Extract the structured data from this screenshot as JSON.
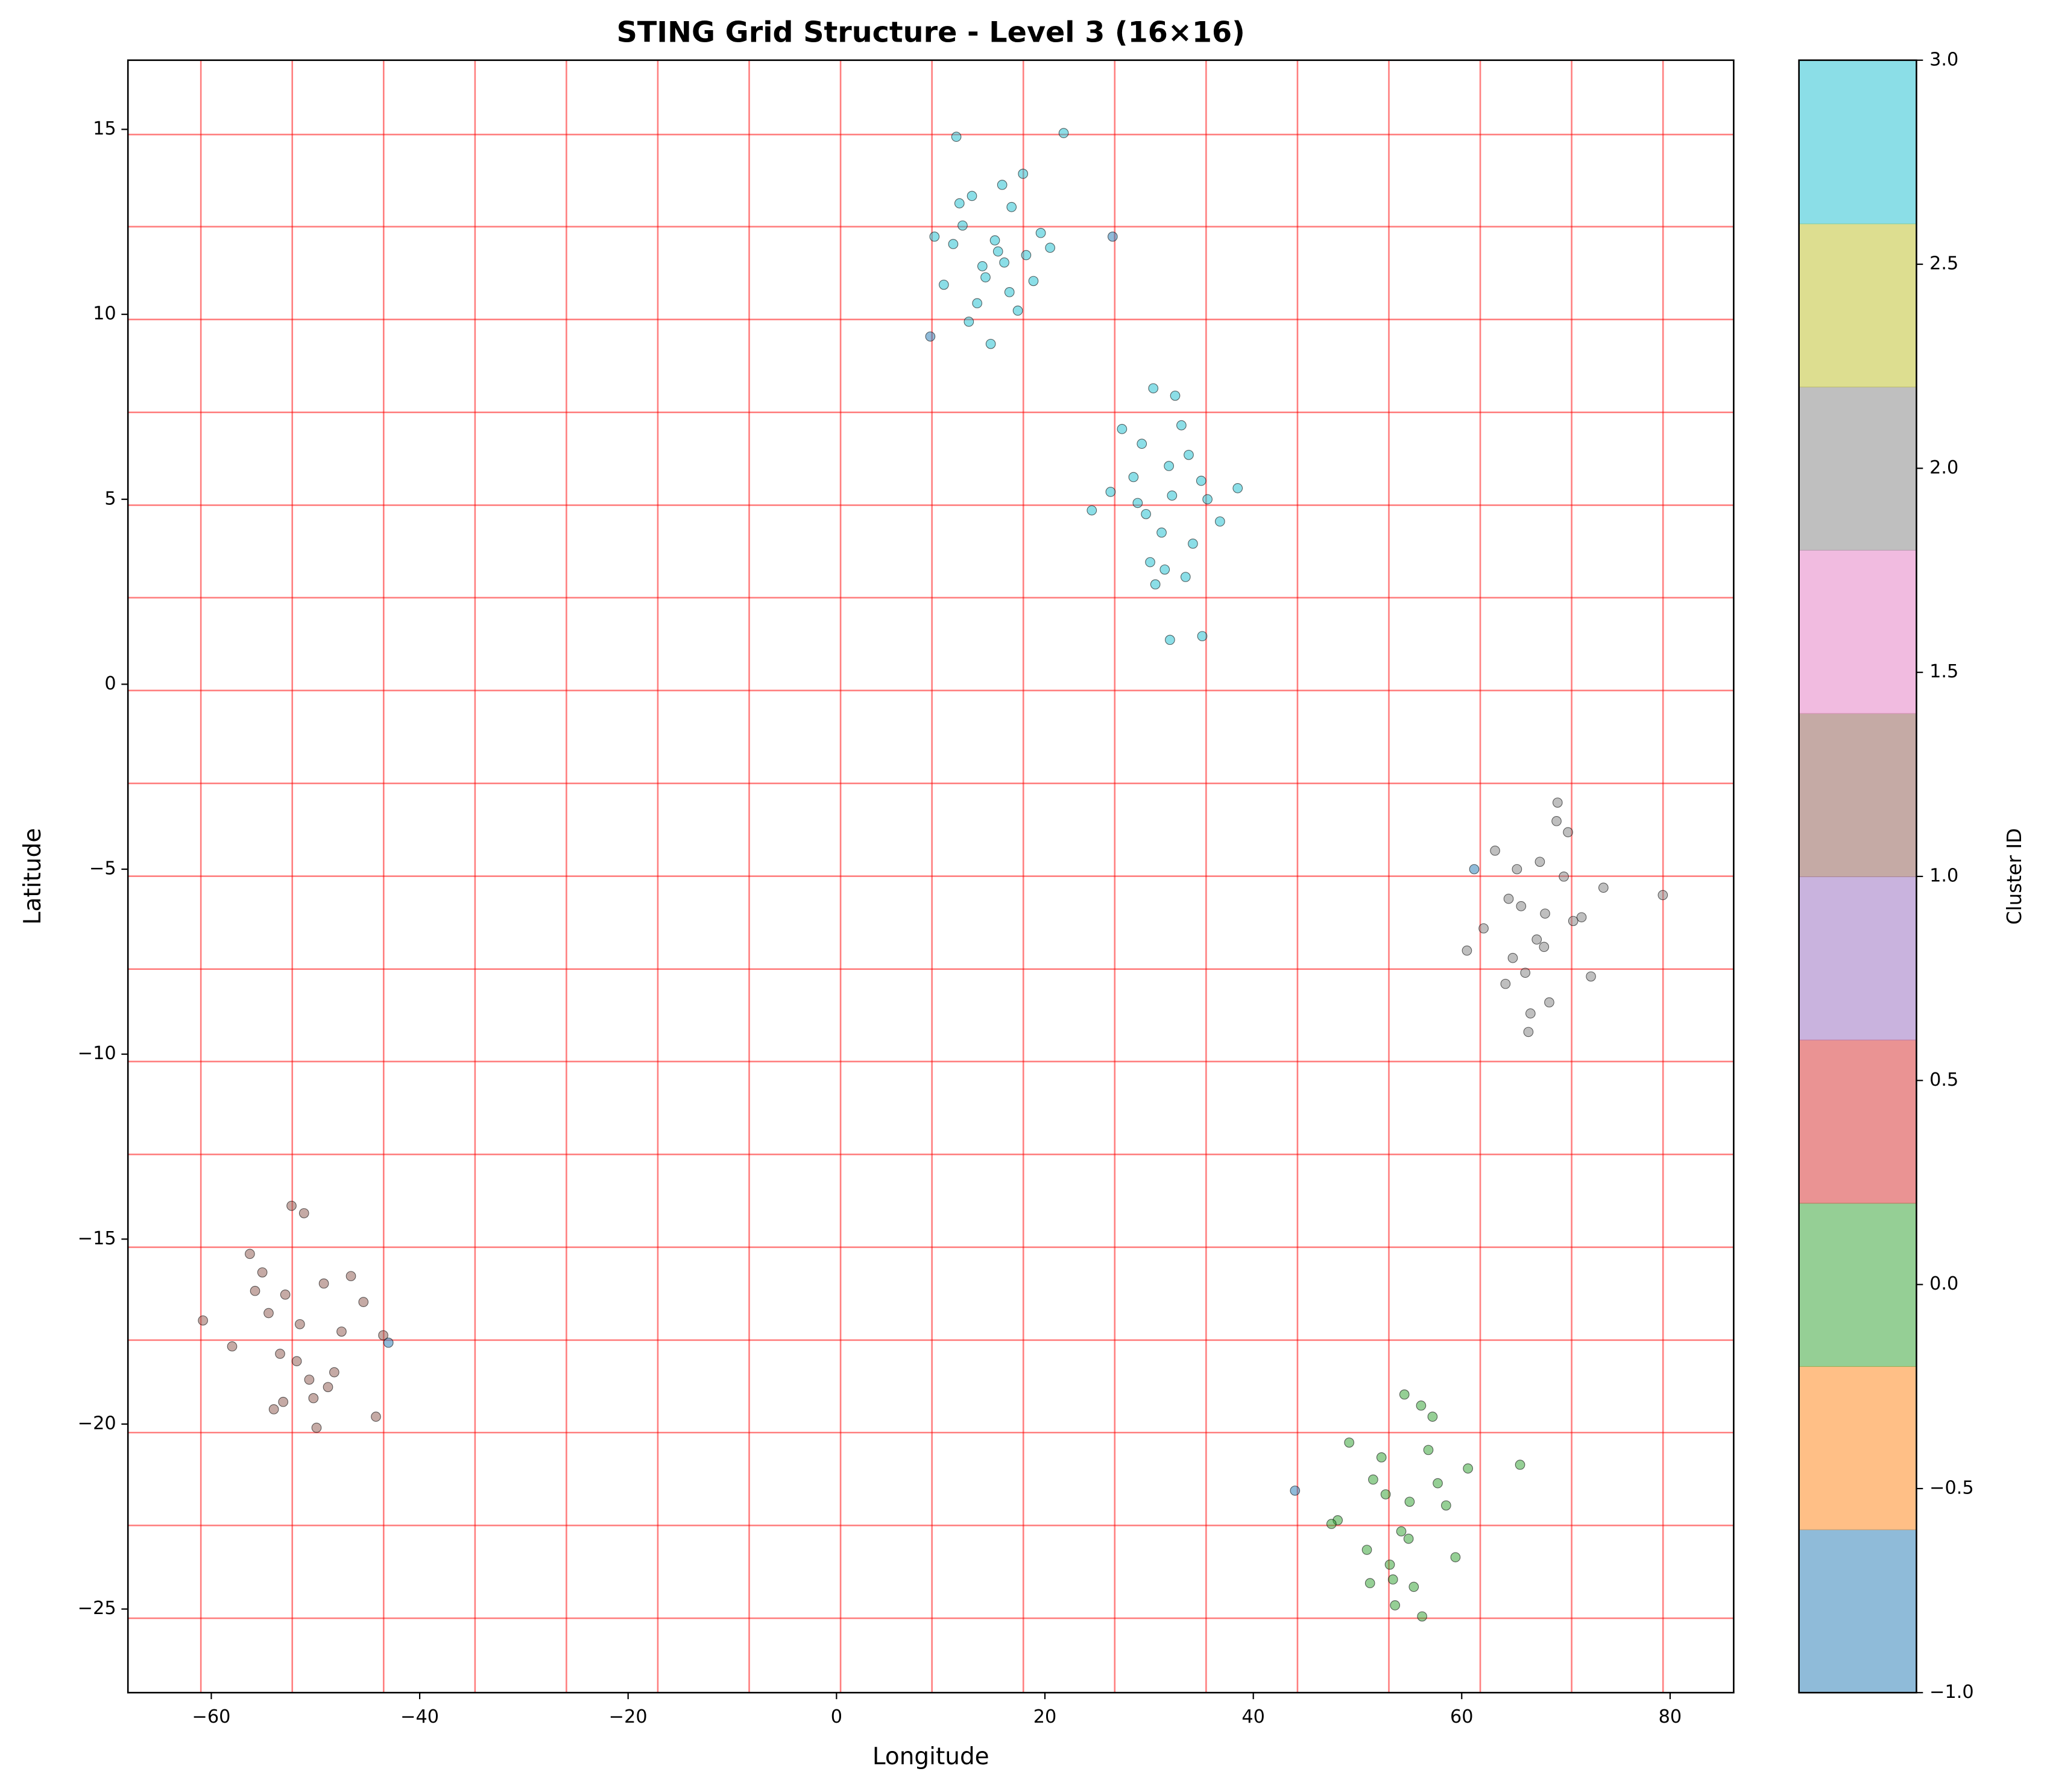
{
  "chart_data": {
    "type": "scatter",
    "title": "STING Grid Structure - Level 3 (16×16)",
    "x_label": "Longitude",
    "y_label": "Latitude",
    "colorbar_label": "Cluster ID",
    "colormap": [
      "#1f77b4",
      "#ff7f0e",
      "#2ca02c",
      "#d62728",
      "#9467bd",
      "#8c564b",
      "#e377c2",
      "#7f7f7f",
      "#bcbd22",
      "#17becf"
    ],
    "clim": [
      -1,
      3
    ],
    "cticks": [
      {
        "value": -1,
        "label": "−1.0"
      },
      {
        "value": -0.5,
        "label": "−0.5"
      },
      {
        "value": 0,
        "label": "0.0"
      },
      {
        "value": 0.5,
        "label": "0.5"
      },
      {
        "value": 1,
        "label": "1.0"
      },
      {
        "value": 1.5,
        "label": "1.5"
      },
      {
        "value": 2,
        "label": "2.0"
      },
      {
        "value": 2.5,
        "label": "2.5"
      },
      {
        "value": 3,
        "label": "3.0"
      }
    ],
    "xlim": [
      -68.0,
      86.1
    ],
    "ylim": [
      -27.26,
      16.87
    ],
    "xticks": [
      {
        "value": -60,
        "label": "−60"
      },
      {
        "value": -40,
        "label": "−40"
      },
      {
        "value": -20,
        "label": "−20"
      },
      0,
      20,
      40,
      60,
      80
    ],
    "yticks": [
      {
        "value": -25,
        "label": "−25"
      },
      {
        "value": -20,
        "label": "−20"
      },
      {
        "value": -15,
        "label": "−15"
      },
      {
        "value": -10,
        "label": "−10"
      },
      {
        "value": -5,
        "label": "−5"
      },
      0,
      5,
      10,
      15
    ],
    "grid_color": "#ff0000",
    "grid_x": [
      -61.0,
      -52.23,
      -43.46,
      -34.69,
      -25.92,
      -17.15,
      -8.38,
      0.39,
      9.16,
      17.93,
      26.7,
      35.47,
      44.24,
      53.01,
      61.78,
      70.55,
      79.32
    ],
    "grid_y": [
      -25.25,
      -22.74,
      -20.23,
      -17.73,
      -15.22,
      -12.71,
      -10.2,
      -7.7,
      -5.19,
      -2.68,
      -0.17,
      2.34,
      4.84,
      7.35,
      9.86,
      12.37,
      14.86
    ],
    "series": [
      {
        "cluster": 3,
        "x": [
          12.1,
          14.3,
          16.8,
          18.2,
          13.5,
          15.9,
          11.2,
          17.4,
          19.6,
          14.8,
          10.3,
          16.1,
          13.0,
          20.5,
          15.2,
          12.7,
          17.9,
          9.4,
          21.8,
          14.0,
          16.6,
          11.8,
          18.9,
          15.5,
          11.5
        ],
        "y": [
          12.4,
          11.0,
          12.9,
          11.6,
          10.3,
          13.5,
          11.9,
          10.1,
          12.2,
          9.2,
          10.8,
          11.4,
          13.2,
          11.8,
          12.0,
          9.8,
          13.8,
          12.1,
          14.9,
          11.3,
          10.6,
          13.0,
          10.9,
          11.7,
          14.8
        ]
      },
      {
        "cluster": 3,
        "x": [
          28.5,
          31.2,
          33.8,
          30.1,
          35.6,
          27.4,
          32.5,
          29.7,
          34.2,
          31.9,
          26.3,
          36.8,
          30.6,
          33.1,
          28.9,
          32.0,
          29.3,
          35.0,
          31.5,
          38.5,
          24.5,
          30.4,
          33.5,
          32.2,
          35.1
        ],
        "y": [
          5.6,
          4.1,
          6.2,
          3.3,
          5.0,
          6.9,
          7.8,
          4.6,
          3.8,
          5.9,
          5.2,
          4.4,
          2.7,
          7.0,
          4.9,
          1.2,
          6.5,
          5.5,
          3.1,
          5.3,
          4.7,
          8.0,
          2.9,
          5.1,
          1.3
        ]
      },
      {
        "cluster": 2,
        "x": [
          64.5,
          67.2,
          69.8,
          66.1,
          71.5,
          63.2,
          68.4,
          65.7,
          70.2,
          67.9,
          62.1,
          73.6,
          66.6,
          69.1,
          64.9,
          68.0,
          65.3,
          72.4,
          67.5,
          79.3,
          60.5,
          66.4,
          70.7,
          69.2,
          64.2
        ],
        "y": [
          -5.8,
          -6.9,
          -5.2,
          -7.8,
          -6.3,
          -4.5,
          -8.6,
          -6.0,
          -4.0,
          -7.1,
          -6.6,
          -5.5,
          -8.9,
          -3.7,
          -7.4,
          -6.2,
          -5.0,
          -7.9,
          -4.8,
          -5.7,
          -7.2,
          -9.4,
          -6.4,
          -3.2,
          -8.1
        ]
      },
      {
        "cluster": 1,
        "x": [
          -54.5,
          -51.8,
          -49.2,
          -53.1,
          -47.5,
          -56.3,
          -50.6,
          -52.9,
          -48.8,
          -51.1,
          -58.0,
          -45.4,
          -53.4,
          -49.9,
          -55.1,
          -51.5,
          -54.0,
          -46.6,
          -52.3,
          -60.8,
          -43.5,
          -50.2,
          -55.8,
          -48.2,
          -44.2
        ],
        "y": [
          -17.0,
          -18.3,
          -16.2,
          -19.4,
          -17.5,
          -15.4,
          -18.8,
          -16.5,
          -19.0,
          -14.3,
          -17.9,
          -16.7,
          -18.1,
          -20.1,
          -15.9,
          -17.3,
          -19.6,
          -16.0,
          -14.1,
          -17.2,
          -17.6,
          -19.3,
          -16.4,
          -18.6,
          -19.8
        ]
      },
      {
        "cluster": 0,
        "x": [
          51.5,
          54.2,
          56.8,
          53.1,
          58.5,
          49.2,
          55.4,
          52.7,
          57.2,
          54.9,
          48.1,
          60.6,
          53.6,
          56.1,
          50.9,
          55.0,
          52.3,
          59.4,
          54.5,
          65.6,
          47.5,
          53.4,
          57.7,
          56.2,
          51.2
        ],
        "y": [
          -21.5,
          -22.9,
          -20.7,
          -23.8,
          -22.2,
          -20.5,
          -24.4,
          -21.9,
          -19.8,
          -23.1,
          -22.6,
          -21.2,
          -24.9,
          -19.5,
          -23.4,
          -22.1,
          -20.9,
          -23.6,
          -19.2,
          -21.1,
          -22.7,
          -24.2,
          -21.6,
          -25.2,
          -24.3
        ]
      },
      {
        "cluster": -1,
        "x": [
          9.0,
          26.5,
          61.2,
          -43.0,
          44.0
        ],
        "y": [
          9.4,
          12.1,
          -5.0,
          -17.8,
          -21.8
        ]
      }
    ]
  }
}
